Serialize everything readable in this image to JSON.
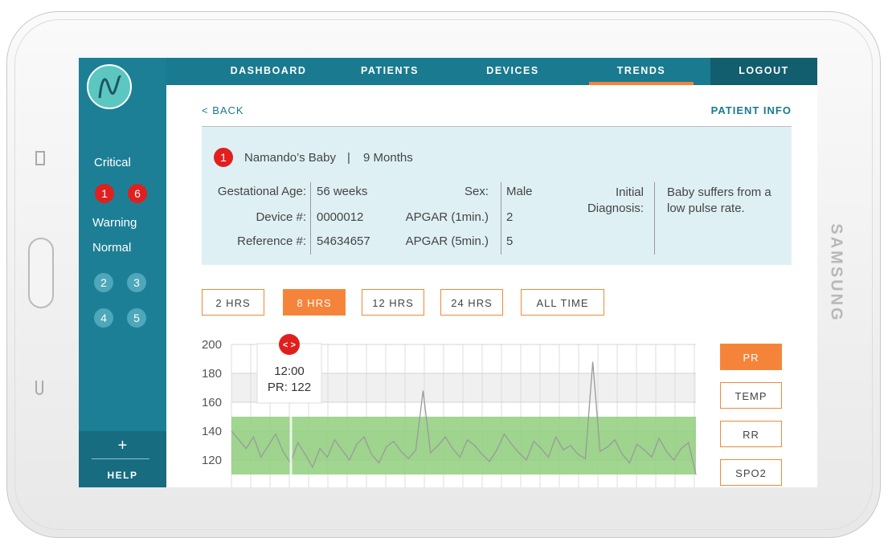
{
  "device": {
    "brand": "SAMSUNG"
  },
  "nav": {
    "items": [
      "DASHBOARD",
      "PATIENTS",
      "DEVICES",
      "TRENDS"
    ],
    "active": 3,
    "logout": "LOGOUT"
  },
  "sidebar": {
    "critical_label": "Critical",
    "critical": [
      "1",
      "6"
    ],
    "warning_label": "Warning",
    "normal_label": "Normal",
    "normal": [
      "2",
      "3",
      "4",
      "5"
    ],
    "help_icon": "+",
    "help": "HELP"
  },
  "header": {
    "back": "< BACK",
    "patient_info": "PATIENT INFO"
  },
  "patient": {
    "badge": "1",
    "name": "Namando’s Baby",
    "separator": "|",
    "age": "9 Months",
    "fields": [
      {
        "label": "Gestational Age:",
        "value": "56 weeks"
      },
      {
        "label": "Device #:",
        "value": "0000012"
      },
      {
        "label": "Reference #:",
        "value": "54634657"
      }
    ],
    "fields2": [
      {
        "label": "Sex:",
        "value": "Male"
      },
      {
        "label": "APGAR (1min.)",
        "value": "2"
      },
      {
        "label": "APGAR (5min.)",
        "value": "5"
      }
    ],
    "diagnosis_label": "Initial Diagnosis:",
    "diagnosis": "Baby suffers from a low pulse rate."
  },
  "ranges": {
    "options": [
      "2 HRS",
      "8 HRS",
      "12 HRS",
      "24 HRS",
      "ALL TIME"
    ],
    "active": 1
  },
  "chart_data": {
    "type": "line",
    "ylim": [
      100,
      200
    ],
    "yticks": [
      120,
      140,
      160,
      180,
      200
    ],
    "color": "#9a9a9a",
    "normal_range": [
      110,
      150
    ],
    "band_color": "#8fcf7d",
    "values": [
      140,
      134,
      128,
      136,
      122,
      130,
      138,
      126,
      118,
      132,
      124,
      115,
      128,
      122,
      134,
      127,
      120,
      131,
      136,
      124,
      118,
      129,
      133,
      126,
      121,
      127,
      168,
      125,
      130,
      136,
      128,
      122,
      134,
      130,
      124,
      119,
      127,
      138,
      131,
      125,
      120,
      133,
      128,
      122,
      136,
      127,
      130,
      124,
      121,
      188,
      126,
      129,
      134,
      124,
      118,
      131,
      127,
      122,
      135,
      126,
      120,
      128,
      132,
      110
    ],
    "tooltip": {
      "marker": "< >",
      "time": "12:00",
      "reading": "PR: 122"
    }
  },
  "metrics": {
    "options": [
      "PR",
      "TEMP",
      "RR",
      "SPO2"
    ],
    "active": 0
  }
}
